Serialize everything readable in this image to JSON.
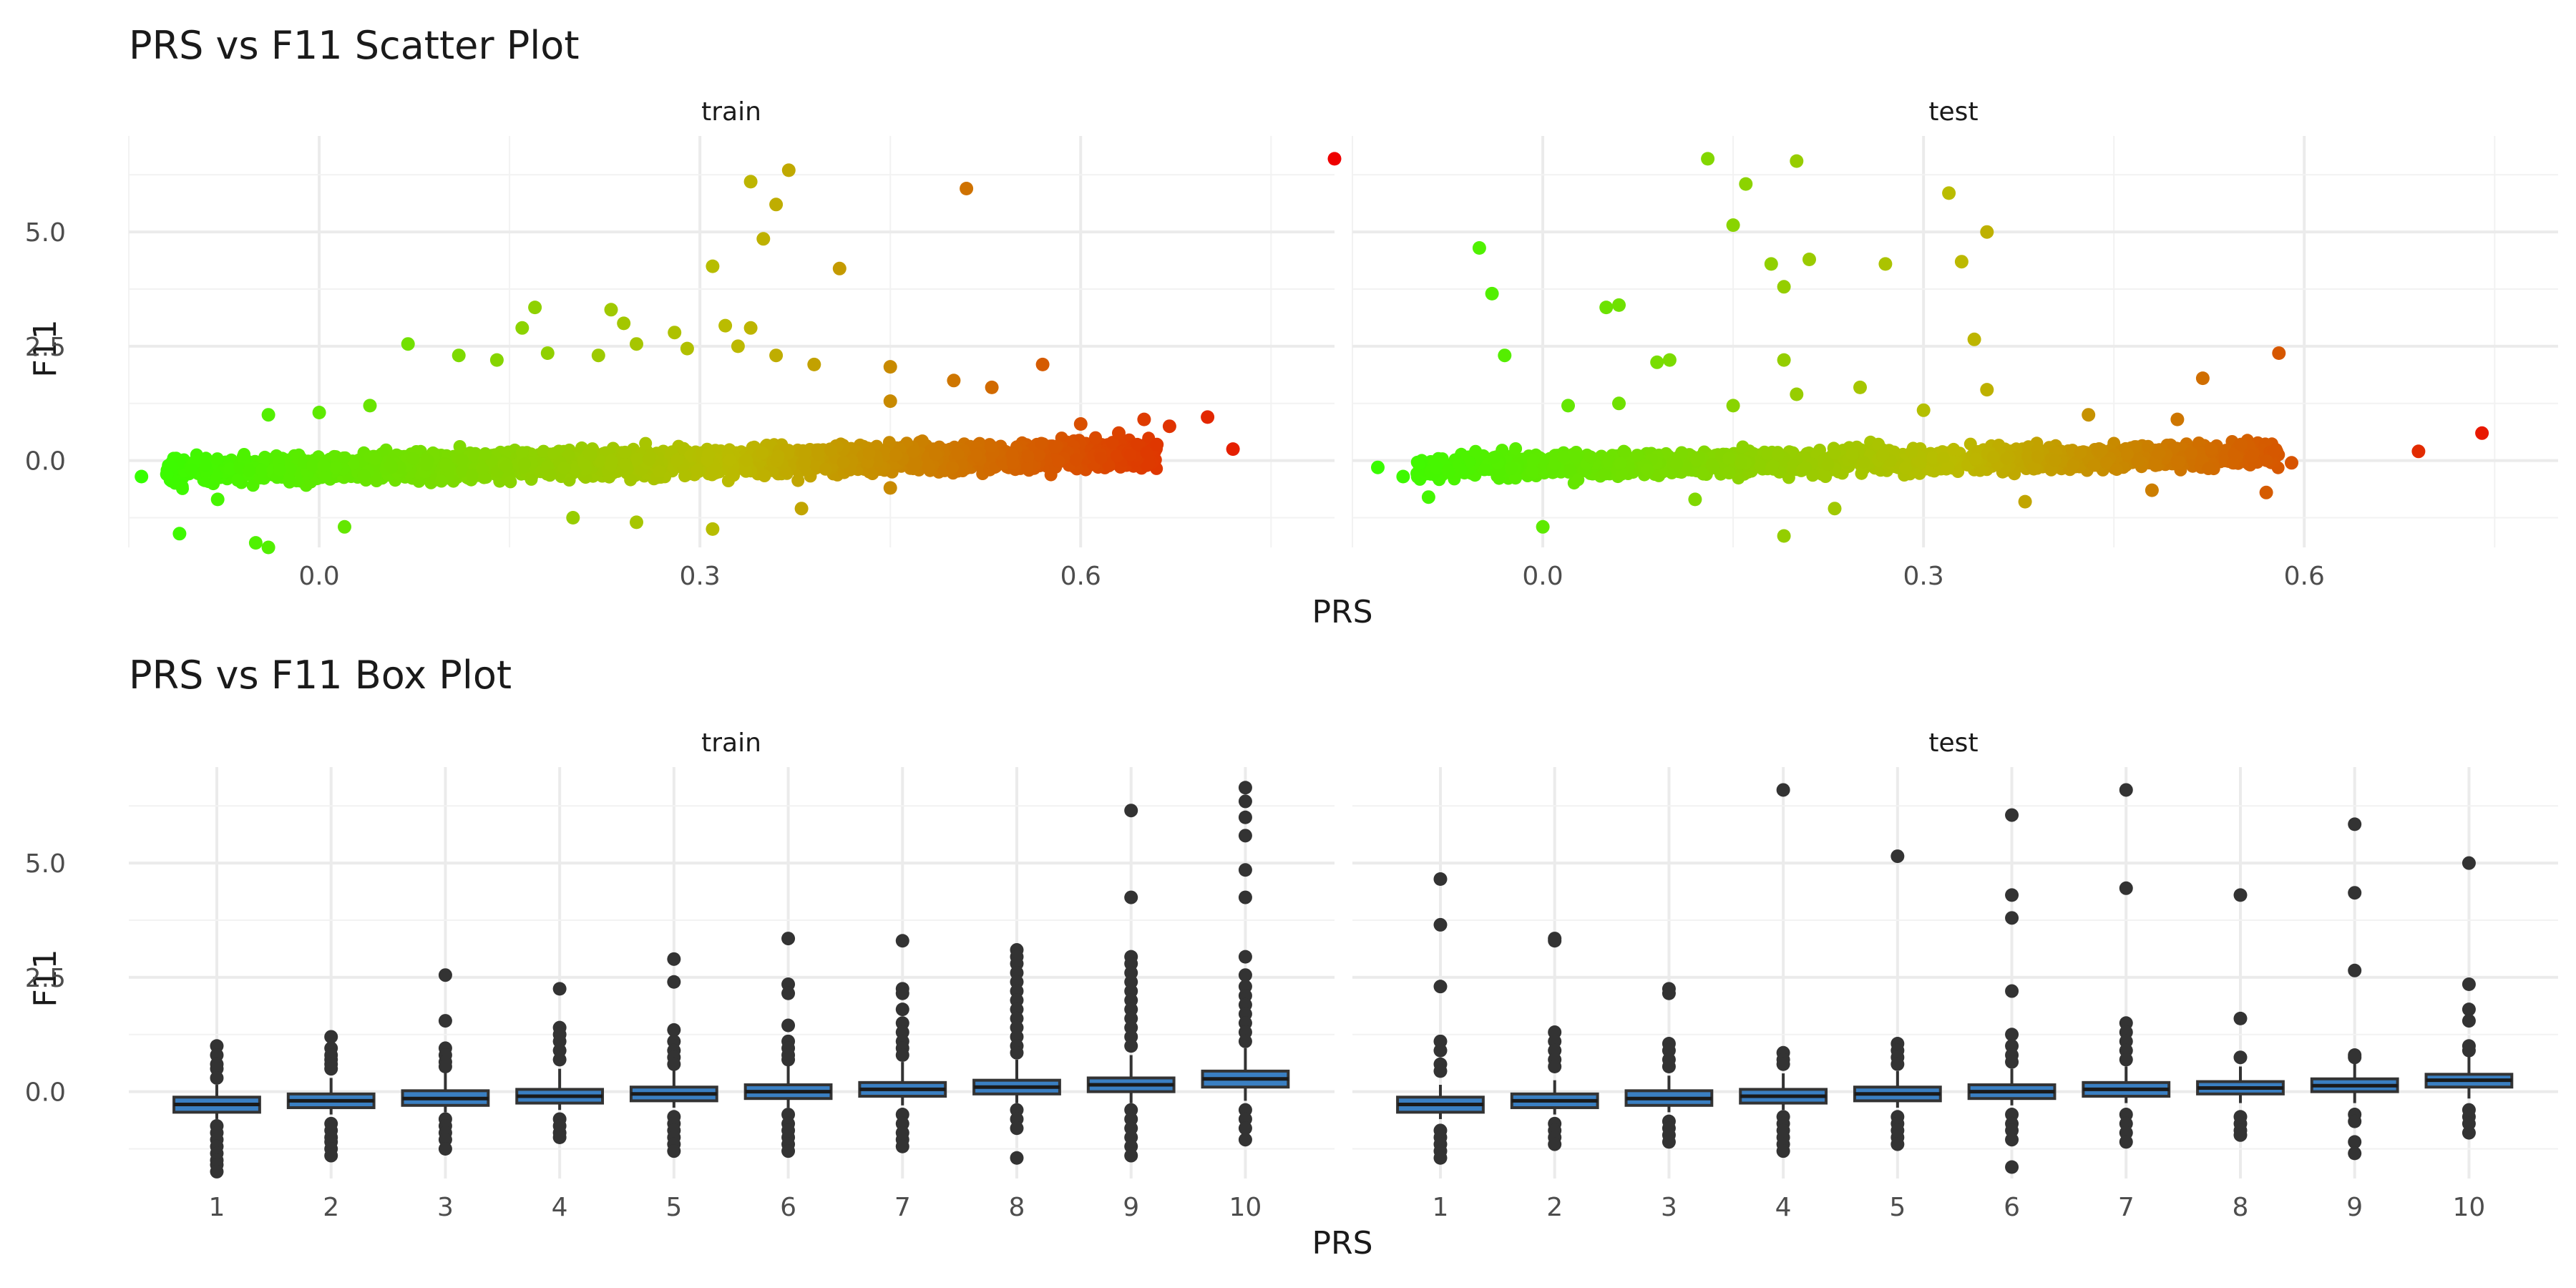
{
  "chart_data": [
    {
      "type": "scatter",
      "title": "PRS vs F11 Scatter Plot",
      "xlabel": "PRS",
      "ylabel": "F11",
      "facets": [
        "train",
        "test"
      ],
      "xlim": [
        -0.15,
        0.8
      ],
      "ylim": [
        -1.9,
        7.1
      ],
      "x_ticks": [
        0.0,
        0.3,
        0.6
      ],
      "x_tick_labels": [
        "0.0",
        "0.3",
        "0.6"
      ],
      "y_ticks": [
        0.0,
        2.5,
        5.0
      ],
      "y_tick_labels": [
        "0.0",
        "2.5",
        "5.0"
      ],
      "grid": true,
      "color_scale": {
        "low": "#33ff00",
        "mid": "#bbbb00",
        "high": "#ee0000",
        "domain": [
          -0.15,
          0.8
        ]
      },
      "series": [
        {
          "facet": "train",
          "points": [
            [
              0.8,
              6.6
            ],
            [
              0.51,
              5.95
            ],
            [
              0.37,
              6.35
            ],
            [
              0.34,
              6.1
            ],
            [
              0.36,
              5.6
            ],
            [
              0.35,
              4.85
            ],
            [
              0.31,
              4.25
            ],
            [
              0.41,
              4.2
            ],
            [
              0.17,
              3.35
            ],
            [
              0.23,
              3.3
            ],
            [
              0.24,
              3.0
            ],
            [
              0.32,
              2.95
            ],
            [
              0.16,
              2.9
            ],
            [
              0.28,
              2.8
            ],
            [
              0.34,
              2.9
            ],
            [
              0.25,
              2.55
            ],
            [
              0.07,
              2.55
            ],
            [
              0.11,
              2.3
            ],
            [
              0.14,
              2.2
            ],
            [
              0.18,
              2.35
            ],
            [
              0.22,
              2.3
            ],
            [
              0.29,
              2.45
            ],
            [
              0.33,
              2.5
            ],
            [
              0.36,
              2.3
            ],
            [
              0.39,
              2.1
            ],
            [
              0.45,
              2.05
            ],
            [
              0.57,
              2.1
            ],
            [
              0.5,
              1.75
            ],
            [
              0.53,
              1.6
            ],
            [
              0.7,
              0.95
            ],
            [
              0.67,
              0.75
            ],
            [
              0.72,
              0.25
            ],
            [
              0.65,
              0.9
            ],
            [
              0.63,
              0.6
            ],
            [
              0.6,
              0.8
            ],
            [
              0.58,
              0.3
            ],
            [
              0.66,
              0.35
            ],
            [
              -0.12,
              -0.3
            ],
            [
              -0.14,
              -0.35
            ],
            [
              -0.11,
              -1.6
            ],
            [
              -0.05,
              -1.8
            ],
            [
              -0.04,
              -1.9
            ],
            [
              0.31,
              -1.5
            ],
            [
              0.38,
              -1.05
            ],
            [
              0.25,
              -1.35
            ],
            [
              0.2,
              -1.25
            ],
            [
              0.02,
              -1.45
            ],
            [
              -0.08,
              -0.85
            ],
            [
              0.45,
              -0.6
            ],
            [
              0.0,
              1.05
            ],
            [
              -0.04,
              1.0
            ],
            [
              0.04,
              1.2
            ],
            [
              0.45,
              1.3
            ],
            [
              0.1,
              -0.1
            ]
          ],
          "dense_band": {
            "x_range": [
              -0.12,
              0.66
            ],
            "y_center": "0.45x - 0.15",
            "y_spread": 0.45
          }
        },
        {
          "facet": "test",
          "points": [
            [
              0.13,
              6.6
            ],
            [
              0.2,
              6.55
            ],
            [
              0.16,
              6.05
            ],
            [
              0.32,
              5.85
            ],
            [
              0.15,
              5.15
            ],
            [
              0.35,
              5.0
            ],
            [
              -0.05,
              4.65
            ],
            [
              0.18,
              4.3
            ],
            [
              0.21,
              4.4
            ],
            [
              0.27,
              4.3
            ],
            [
              0.33,
              4.35
            ],
            [
              0.19,
              3.8
            ],
            [
              -0.04,
              3.65
            ],
            [
              0.05,
              3.35
            ],
            [
              0.06,
              3.4
            ],
            [
              0.34,
              2.65
            ],
            [
              -0.03,
              2.3
            ],
            [
              0.1,
              2.2
            ],
            [
              0.09,
              2.15
            ],
            [
              0.19,
              2.2
            ],
            [
              0.58,
              2.35
            ],
            [
              0.52,
              1.8
            ],
            [
              0.25,
              1.6
            ],
            [
              0.35,
              1.55
            ],
            [
              0.69,
              0.2
            ],
            [
              0.74,
              0.6
            ],
            [
              0.57,
              -0.7
            ],
            [
              0.48,
              -0.65
            ],
            [
              0.19,
              -1.65
            ],
            [
              0.0,
              -1.45
            ],
            [
              0.23,
              -1.05
            ],
            [
              -0.09,
              -0.8
            ],
            [
              0.59,
              -0.05
            ],
            [
              0.55,
              0.35
            ],
            [
              0.5,
              0.9
            ],
            [
              0.12,
              -0.85
            ],
            [
              -0.11,
              -0.35
            ],
            [
              -0.13,
              -0.15
            ],
            [
              0.38,
              -0.9
            ],
            [
              0.02,
              1.2
            ],
            [
              0.06,
              1.25
            ],
            [
              0.15,
              1.2
            ],
            [
              0.2,
              1.45
            ],
            [
              0.3,
              1.1
            ],
            [
              0.43,
              1.0
            ]
          ],
          "dense_band": {
            "x_range": [
              -0.1,
              0.58
            ],
            "y_center": "0.4x - 0.1",
            "y_spread": 0.4
          }
        }
      ]
    },
    {
      "type": "box",
      "title": "PRS vs F11 Box Plot",
      "xlabel": "PRS",
      "ylabel": "F11",
      "facets": [
        "train",
        "test"
      ],
      "categories": [
        "1",
        "2",
        "3",
        "4",
        "5",
        "6",
        "7",
        "8",
        "9",
        "10"
      ],
      "ylim": [
        -1.9,
        7.1
      ],
      "y_ticks": [
        0.0,
        2.5,
        5.0
      ],
      "y_tick_labels": [
        "0.0",
        "2.5",
        "5.0"
      ],
      "grid": true,
      "box_color": "#3a7fc2",
      "series": [
        {
          "facet": "train",
          "boxes": [
            {
              "q1": -0.45,
              "median": -0.28,
              "q3": -0.12,
              "whisker_low": -0.6,
              "whisker_high": 0.15,
              "outliers": [
                1.0,
                0.8,
                0.6,
                0.5,
                0.3,
                -0.75,
                -0.9,
                -1.05,
                -1.2,
                -1.35,
                -1.5,
                -1.6,
                -1.75
              ]
            },
            {
              "q1": -0.35,
              "median": -0.2,
              "q3": -0.05,
              "whisker_low": -0.5,
              "whisker_high": 0.3,
              "outliers": [
                1.2,
                0.95,
                0.8,
                0.7,
                0.6,
                0.5,
                -0.7,
                -0.85,
                -1.0,
                -1.1,
                -1.25,
                -1.4
              ]
            },
            {
              "q1": -0.3,
              "median": -0.15,
              "q3": 0.02,
              "whisker_low": -0.45,
              "whisker_high": 0.45,
              "outliers": [
                2.55,
                1.55,
                0.95,
                0.8,
                0.65,
                0.55,
                -0.6,
                -0.75,
                -0.9,
                -1.05,
                -1.25
              ]
            },
            {
              "q1": -0.25,
              "median": -0.1,
              "q3": 0.05,
              "whisker_low": -0.4,
              "whisker_high": 0.5,
              "outliers": [
                2.25,
                1.4,
                1.25,
                1.1,
                0.9,
                0.7,
                -0.6,
                -0.75,
                -0.9,
                -1.0
              ]
            },
            {
              "q1": -0.2,
              "median": -0.05,
              "q3": 0.1,
              "whisker_low": -0.35,
              "whisker_high": 0.55,
              "outliers": [
                2.9,
                2.4,
                1.35,
                1.1,
                0.9,
                0.75,
                0.6,
                -0.55,
                -0.7,
                -0.85,
                -1.0,
                -1.15,
                -1.3
              ]
            },
            {
              "q1": -0.15,
              "median": 0.0,
              "q3": 0.15,
              "whisker_low": -0.35,
              "whisker_high": 0.6,
              "outliers": [
                3.35,
                2.35,
                2.15,
                1.45,
                1.1,
                0.95,
                0.8,
                0.7,
                -0.5,
                -0.7,
                -0.85,
                -1.0,
                -1.15,
                -1.3
              ]
            },
            {
              "q1": -0.1,
              "median": 0.05,
              "q3": 0.2,
              "whisker_low": -0.3,
              "whisker_high": 0.65,
              "outliers": [
                3.3,
                2.25,
                2.15,
                1.8,
                1.5,
                1.3,
                1.1,
                0.95,
                0.8,
                -0.5,
                -0.7,
                -0.9,
                -1.05,
                -1.2
              ]
            },
            {
              "q1": -0.05,
              "median": 0.1,
              "q3": 0.25,
              "whisker_low": -0.25,
              "whisker_high": 0.7,
              "outliers": [
                3.1,
                2.95,
                2.8,
                2.6,
                2.4,
                2.2,
                2.0,
                1.8,
                1.6,
                1.4,
                1.2,
                1.0,
                0.85,
                -0.4,
                -0.6,
                -0.8,
                -1.45
              ]
            },
            {
              "q1": 0.0,
              "median": 0.15,
              "q3": 0.3,
              "whisker_low": -0.25,
              "whisker_high": 0.8,
              "outliers": [
                6.15,
                4.25,
                2.95,
                2.8,
                2.6,
                2.4,
                2.2,
                2.0,
                1.8,
                1.6,
                1.4,
                1.2,
                1.0,
                -0.4,
                -0.6,
                -0.8,
                -1.0,
                -1.2,
                -1.4
              ]
            },
            {
              "q1": 0.1,
              "median": 0.28,
              "q3": 0.45,
              "whisker_low": -0.2,
              "whisker_high": 0.95,
              "outliers": [
                6.65,
                6.35,
                6.0,
                5.6,
                4.85,
                4.25,
                2.95,
                2.55,
                2.3,
                2.1,
                1.9,
                1.7,
                1.5,
                1.3,
                1.1,
                -0.4,
                -0.6,
                -0.8,
                -1.05
              ]
            }
          ]
        },
        {
          "facet": "test",
          "boxes": [
            {
              "q1": -0.45,
              "median": -0.28,
              "q3": -0.12,
              "whisker_low": -0.6,
              "whisker_high": 0.15,
              "outliers": [
                4.65,
                3.65,
                2.3,
                1.1,
                0.9,
                0.6,
                0.45,
                -0.85,
                -1.0,
                -1.15,
                -1.3,
                -1.45
              ]
            },
            {
              "q1": -0.35,
              "median": -0.2,
              "q3": -0.05,
              "whisker_low": -0.5,
              "whisker_high": 0.25,
              "outliers": [
                3.35,
                3.3,
                1.3,
                1.1,
                0.9,
                0.7,
                0.55,
                -0.7,
                -0.85,
                -1.0,
                -1.15
              ]
            },
            {
              "q1": -0.3,
              "median": -0.15,
              "q3": 0.02,
              "whisker_low": -0.45,
              "whisker_high": 0.35,
              "outliers": [
                2.25,
                2.15,
                1.05,
                0.9,
                0.7,
                0.55,
                -0.65,
                -0.8,
                -0.95,
                -1.1
              ]
            },
            {
              "q1": -0.25,
              "median": -0.1,
              "q3": 0.05,
              "whisker_low": -0.4,
              "whisker_high": 0.4,
              "outliers": [
                6.6,
                0.85,
                0.7,
                0.6,
                -0.55,
                -0.7,
                -0.85,
                -1.0,
                -1.15,
                -1.3
              ]
            },
            {
              "q1": -0.2,
              "median": -0.05,
              "q3": 0.1,
              "whisker_low": -0.35,
              "whisker_high": 0.45,
              "outliers": [
                5.15,
                1.05,
                0.9,
                0.75,
                0.6,
                -0.55,
                -0.7,
                -0.85,
                -1.0,
                -1.15
              ]
            },
            {
              "q1": -0.15,
              "median": 0.0,
              "q3": 0.15,
              "whisker_low": -0.3,
              "whisker_high": 0.5,
              "outliers": [
                6.05,
                4.3,
                3.8,
                2.2,
                1.25,
                1.0,
                0.8,
                0.65,
                -0.5,
                -0.7,
                -0.85,
                -1.05,
                -1.65
              ]
            },
            {
              "q1": -0.1,
              "median": 0.05,
              "q3": 0.2,
              "whisker_low": -0.25,
              "whisker_high": 0.55,
              "outliers": [
                6.6,
                4.45,
                1.5,
                1.3,
                1.1,
                0.9,
                0.7,
                -0.5,
                -0.7,
                -0.9,
                -1.1
              ]
            },
            {
              "q1": -0.05,
              "median": 0.08,
              "q3": 0.22,
              "whisker_low": -0.25,
              "whisker_high": 0.55,
              "outliers": [
                4.3,
                1.6,
                0.75,
                -0.55,
                -0.7,
                -0.85,
                -0.95
              ]
            },
            {
              "q1": 0.0,
              "median": 0.13,
              "q3": 0.28,
              "whisker_low": -0.25,
              "whisker_high": 0.65,
              "outliers": [
                5.85,
                4.35,
                2.65,
                0.8,
                0.75,
                -0.5,
                -0.65,
                -1.1,
                -1.35
              ]
            },
            {
              "q1": 0.1,
              "median": 0.25,
              "q3": 0.38,
              "whisker_low": -0.15,
              "whisker_high": 0.8,
              "outliers": [
                5.0,
                2.35,
                1.8,
                1.55,
                1.0,
                0.9,
                -0.4,
                -0.55,
                -0.7,
                -0.9
              ]
            }
          ]
        }
      ]
    }
  ]
}
